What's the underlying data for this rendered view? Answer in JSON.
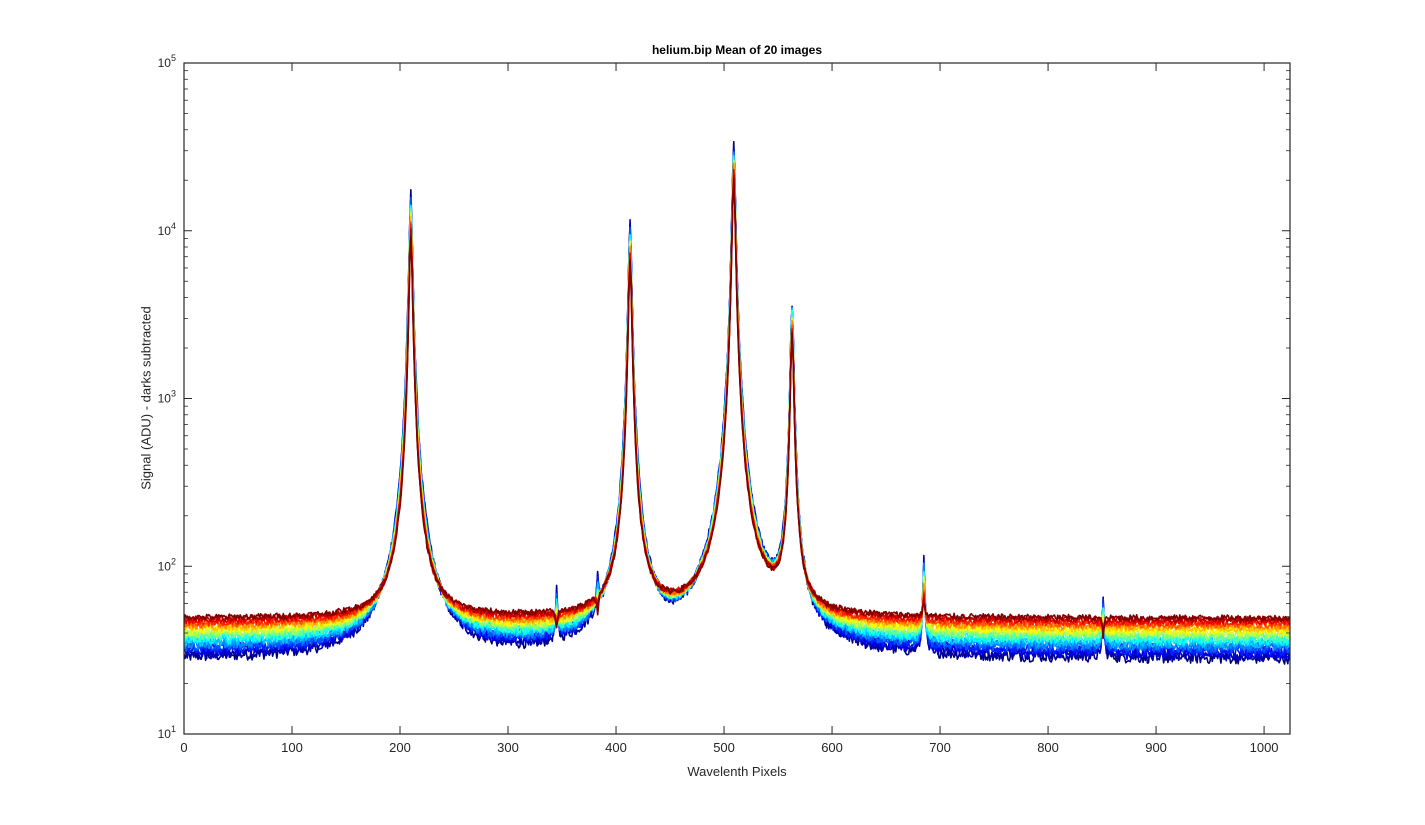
{
  "chart_data": {
    "type": "line",
    "title": "helium.bip  Mean of 20 images",
    "xlabel": "Wavelenth Pixels",
    "ylabel": "Signal (ADU) - darks subtracted",
    "xlim": [
      0,
      1024
    ],
    "ylim": [
      10,
      100000
    ],
    "yscale": "log",
    "grid": false,
    "legend": "none",
    "xticks": [
      0,
      100,
      200,
      300,
      400,
      500,
      600,
      700,
      800,
      900,
      1000
    ],
    "yticks": [
      {
        "value": 10,
        "base": "10",
        "exp": "1"
      },
      {
        "value": 100,
        "base": "10",
        "exp": "2"
      },
      {
        "value": 1000,
        "base": "10",
        "exp": "3"
      },
      {
        "value": 10000,
        "base": "10",
        "exp": "4"
      },
      {
        "value": 100000,
        "base": "10",
        "exp": "5"
      }
    ],
    "series_count": 20,
    "colormap": "jet",
    "color_range": [
      "#0000cc",
      "#ee0000"
    ],
    "baseline_range": [
      28,
      49
    ],
    "peaks": [
      {
        "x": 210,
        "y_max": 16500,
        "y_min": 9500
      },
      {
        "x": 413,
        "y_max": 11000,
        "y_min": 6800
      },
      {
        "x": 509,
        "y_max": 32000,
        "y_min": 21000
      },
      {
        "x": 563,
        "y_max": 3600,
        "y_min": 2500
      },
      {
        "x": 685,
        "y_max": 108,
        "y_min": 60
      },
      {
        "x": 851,
        "y_max": 63,
        "y_min": 38
      },
      {
        "x": 345,
        "y_max": 62,
        "y_min": 36
      },
      {
        "x": 383,
        "y_max": 58,
        "y_min": 34
      }
    ]
  }
}
